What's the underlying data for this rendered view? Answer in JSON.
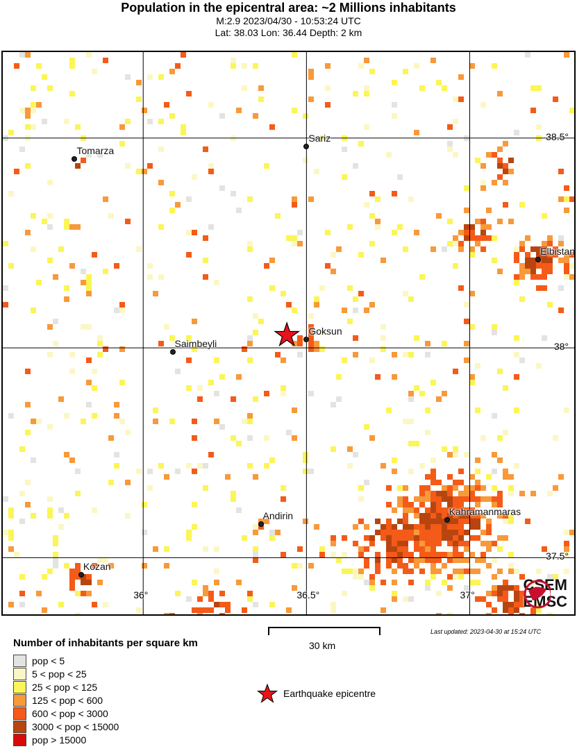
{
  "header": {
    "title": "Population in the epicentral area: ~2 Millions inhabitants",
    "event": "M:2.9 2023/04/30 - 10:53:24 UTC",
    "location": "Lat: 38.03 Lon: 36.44 Depth: 2 km"
  },
  "map": {
    "lon_range": [
      35.57,
      37.32
    ],
    "lat_range": [
      37.365,
      38.705
    ],
    "lon_ticks": [
      {
        "value": 36,
        "label": "36°"
      },
      {
        "value": 36.5,
        "label": "36.5°"
      },
      {
        "value": 37,
        "label": "37°"
      }
    ],
    "lat_ticks": [
      {
        "value": 38.5,
        "label": "38.5°"
      },
      {
        "value": 38,
        "label": "38°"
      },
      {
        "value": 37.5,
        "label": "37.5°"
      }
    ],
    "epicentre": {
      "lat": 38.03,
      "lon": 36.44,
      "color": "#e8141b"
    },
    "cities": [
      {
        "name": "Tomarza",
        "lat": 38.45,
        "lon": 35.79
      },
      {
        "name": "Sariz",
        "lat": 38.48,
        "lon": 36.5
      },
      {
        "name": "Elbistan",
        "lat": 38.21,
        "lon": 37.21
      },
      {
        "name": "Goksun",
        "lat": 38.02,
        "lon": 36.5
      },
      {
        "name": "Saimbeyli",
        "lat": 37.99,
        "lon": 36.09
      },
      {
        "name": "Andirin",
        "lat": 37.58,
        "lon": 36.36
      },
      {
        "name": "Kahramanmaras",
        "lat": 37.59,
        "lon": 36.93
      },
      {
        "name": "Kozan",
        "lat": 37.46,
        "lon": 35.81
      }
    ],
    "logo": {
      "line1": "CSEM",
      "line2": "EMSC"
    }
  },
  "scale_bar": {
    "label": "30 km"
  },
  "last_updated": "Last updated: 2023-04-30 at 15:24 UTC",
  "legend": {
    "title": "Number of inhabitants per square km",
    "items": [
      {
        "label": "pop < 5",
        "color": "#e3e4e2"
      },
      {
        "label": "5 < pop < 25",
        "color": "#fbf7c4"
      },
      {
        "label": "25 < pop < 125",
        "color": "#fbf557"
      },
      {
        "label": "125 < pop < 600",
        "color": "#f8993a"
      },
      {
        "label": "600 < pop < 3000",
        "color": "#f45b18"
      },
      {
        "label": "3000 < pop < 15000",
        "color": "#b8450f"
      },
      {
        "label": "pop > 15000",
        "color": "#d60c0c"
      }
    ],
    "epicentre_label": "Earthquake epicentre"
  }
}
